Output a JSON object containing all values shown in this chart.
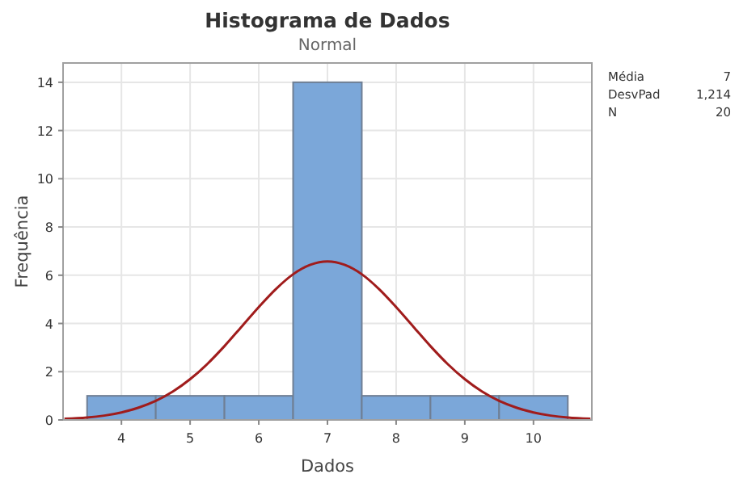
{
  "chart_data": {
    "type": "histogram",
    "title": "Histograma de Dados",
    "subtitle": "Normal",
    "xlabel": "Dados",
    "ylabel": "Frequência",
    "bins": [
      3.5,
      4.5,
      5.5,
      6.5,
      7.5,
      8.5,
      9.5,
      10.5
    ],
    "values": [
      1,
      1,
      1,
      14,
      1,
      1,
      1
    ],
    "color": "#7ba7d9",
    "series": [
      {
        "type": "line",
        "color": "#a01c1c",
        "x": [
          3.17,
          3.5,
          3.75,
          4,
          4.25,
          4.5,
          4.75,
          5,
          5.25,
          5.5,
          5.75,
          6,
          6.25,
          6.5,
          6.75,
          7,
          7.25,
          7.5,
          7.75,
          8,
          8.25,
          8.5,
          8.75,
          9,
          9.25,
          9.5,
          9.75,
          10,
          10.25,
          10.5,
          10.83
        ],
        "values": [
          0.05,
          0.1,
          0.18,
          0.31,
          0.51,
          0.79,
          1.18,
          1.69,
          2.32,
          3.06,
          3.87,
          4.68,
          5.43,
          6.04,
          6.43,
          6.57,
          6.43,
          6.04,
          5.43,
          4.68,
          3.87,
          3.06,
          2.32,
          1.69,
          1.18,
          0.79,
          0.51,
          0.31,
          0.18,
          0.1,
          0.05
        ]
      }
    ],
    "xlim": [
      3.15,
      10.85
    ],
    "xticks": [
      4,
      5,
      6,
      7,
      8,
      9,
      10
    ],
    "ylim": [
      0,
      14.8
    ],
    "yticks": [
      0,
      2,
      4,
      6,
      8,
      10,
      12,
      14
    ],
    "grid": true,
    "annotations": [
      "Média",
      "7",
      "DesvPad",
      "1,214",
      "N",
      "20"
    ]
  }
}
